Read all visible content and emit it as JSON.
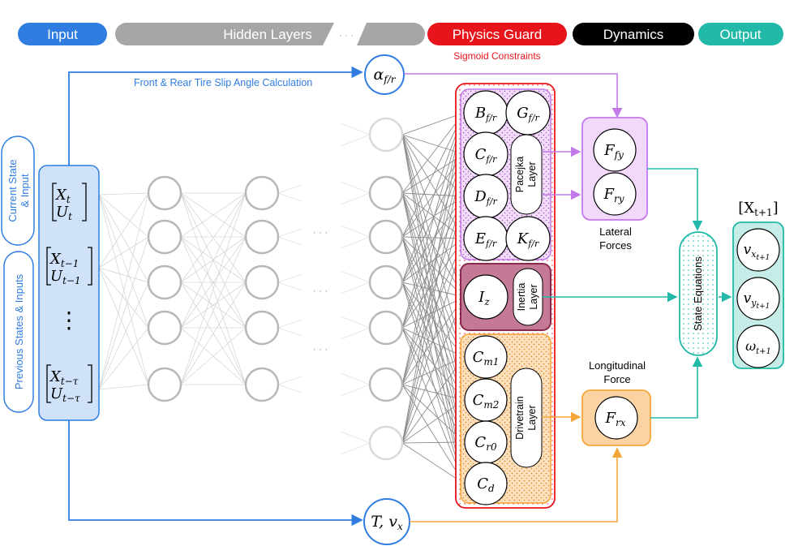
{
  "header": {
    "input": "Input",
    "hidden": "Hidden Layers",
    "ellipsis": "· · ·",
    "physics": "Physics Guard",
    "physics_sub": "Sigmoid Constraints",
    "dynamics": "Dynamics",
    "output": "Output"
  },
  "labels": {
    "slip_calc": "Front & Rear Tire Slip Angle Calculation",
    "current_state": [
      "Current State",
      "& Input"
    ],
    "previous_states": "Previous States & Inputs",
    "dots": "· · ·",
    "lateral_forces": [
      "Lateral",
      "Forces"
    ],
    "longitudinal_force": [
      "Longitudinal",
      "Force"
    ],
    "state_equations": "State Equations",
    "pacejka_layer": [
      "Pacejka",
      "Layer"
    ],
    "inertia_layer": [
      "Inertia",
      "Layer"
    ],
    "drivetrain_layer": [
      "Drivetrain",
      "Layer"
    ],
    "output_title": "[X",
    "output_title_sub": "t+1",
    "output_title_end": "]"
  },
  "inputs": [
    {
      "top": "X",
      "top_sub": "t",
      "bottom": "U",
      "bottom_sub": "t"
    },
    {
      "top": "X",
      "top_sub": "t−1",
      "bottom": "U",
      "bottom_sub": "t−1"
    },
    {
      "top": "X",
      "top_sub": "t−τ",
      "bottom": "U",
      "bottom_sub": "t−τ"
    }
  ],
  "vertical_dots": "⋮",
  "alpha": {
    "main": "α",
    "sub": "f/r"
  },
  "tv": {
    "main": "T, v",
    "sub": "x"
  },
  "pacejka_params": [
    {
      "main": "B",
      "sub": "f/r"
    },
    {
      "main": "G",
      "sub": "f/r"
    },
    {
      "main": "C",
      "sub": "f/r"
    },
    {
      "main": "D",
      "sub": "f/r"
    },
    {
      "main": "E",
      "sub": "f/r"
    },
    {
      "main": "K",
      "sub": "f/r"
    }
  ],
  "inertia_param": {
    "main": "I",
    "sub": "z"
  },
  "drivetrain_params": [
    {
      "main": "C",
      "sub": "m1"
    },
    {
      "main": "C",
      "sub": "m2"
    },
    {
      "main": "C",
      "sub": "r0"
    },
    {
      "main": "C",
      "sub": "d"
    }
  ],
  "lateral": [
    {
      "main": "F",
      "sub": "fy"
    },
    {
      "main": "F",
      "sub": "ry"
    }
  ],
  "longitudinal": {
    "main": "F",
    "sub": "rx"
  },
  "outputs": [
    {
      "main": "v",
      "sub": "x",
      "subsub": "t+1"
    },
    {
      "main": "v",
      "sub": "y",
      "subsub": "t+1"
    },
    {
      "main": "ω",
      "sub": "t+1",
      "subsub": ""
    }
  ],
  "colors": {
    "blue": "#2f7de1",
    "gray": "#a6a6a6",
    "red": "#e8141b",
    "black": "#000000",
    "teal": "#22b9a8",
    "violet": "#c27ae8",
    "orange": "#f5a63a",
    "maroon": "#8a2a4a"
  }
}
